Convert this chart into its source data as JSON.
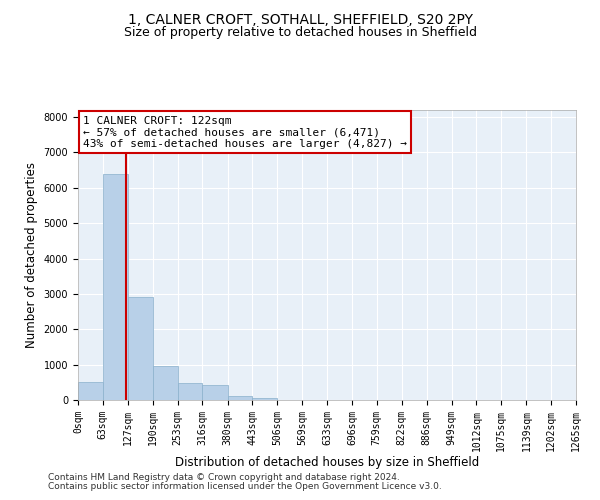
{
  "title_line1": "1, CALNER CROFT, SOTHALL, SHEFFIELD, S20 2PY",
  "title_line2": "Size of property relative to detached houses in Sheffield",
  "xlabel": "Distribution of detached houses by size in Sheffield",
  "ylabel": "Number of detached properties",
  "footer_line1": "Contains HM Land Registry data © Crown copyright and database right 2024.",
  "footer_line2": "Contains public sector information licensed under the Open Government Licence v3.0.",
  "annotation_line1": "1 CALNER CROFT: 122sqm",
  "annotation_line2": "← 57% of detached houses are smaller (6,471)",
  "annotation_line3": "43% of semi-detached houses are larger (4,827) →",
  "property_size": 122,
  "bar_edges": [
    0,
    63,
    127,
    190,
    253,
    316,
    380,
    443,
    506,
    569,
    633,
    696,
    759,
    822,
    886,
    949,
    1012,
    1075,
    1139,
    1202,
    1265
  ],
  "bar_heights": [
    500,
    6400,
    2900,
    950,
    490,
    430,
    120,
    55,
    0,
    0,
    0,
    0,
    0,
    0,
    0,
    0,
    0,
    0,
    0,
    0
  ],
  "bar_color": "#b8d0e8",
  "bar_edge_color": "#8ab0cc",
  "line_color": "#cc0000",
  "ylim": [
    0,
    8200
  ],
  "yticks": [
    0,
    1000,
    2000,
    3000,
    4000,
    5000,
    6000,
    7000,
    8000
  ],
  "background_color": "#e8f0f8",
  "grid_color": "#ffffff",
  "annotation_box_color": "#cc0000",
  "title_fontsize": 10,
  "subtitle_fontsize": 9,
  "axis_label_fontsize": 8.5,
  "tick_fontsize": 7,
  "footer_fontsize": 6.5,
  "annotation_fontsize": 8
}
